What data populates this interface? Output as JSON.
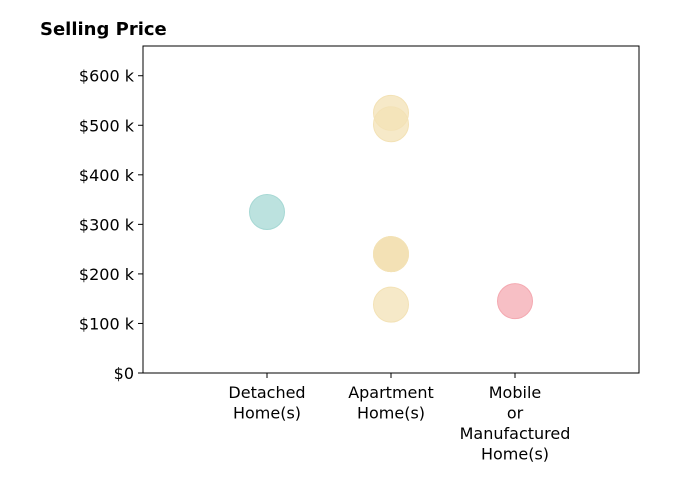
{
  "chart_data": {
    "type": "scatter",
    "title": "Selling Price",
    "xlabel": "",
    "ylabel": "",
    "categories": [
      [
        "Detached",
        "Home(s)"
      ],
      [
        "Apartment",
        "Home(s)"
      ],
      [
        "Mobile",
        "or",
        "Manufactured",
        "Home(s)"
      ]
    ],
    "xlim": [
      0,
      4
    ],
    "ylim": [
      0,
      660000
    ],
    "y_ticks": [
      {
        "value": 0,
        "label": "$0"
      },
      {
        "value": 100000,
        "label": "$100 k"
      },
      {
        "value": 200000,
        "label": "$200 k"
      },
      {
        "value": 300000,
        "label": "$300 k"
      },
      {
        "value": 400000,
        "label": "$400 k"
      },
      {
        "value": 500000,
        "label": "$500 k"
      },
      {
        "value": 600000,
        "label": "$600 k"
      }
    ],
    "grid": false,
    "points": [
      {
        "category": 0,
        "value": 325000,
        "color": "#a6d8d4"
      },
      {
        "category": 1,
        "value": 525000,
        "color": "#f3e2b6"
      },
      {
        "category": 1,
        "value": 502000,
        "color": "#f3e2b6"
      },
      {
        "category": 1,
        "value": 240000,
        "color": "#efd69a"
      },
      {
        "category": 1,
        "value": 240000,
        "color": "#f3e2b6"
      },
      {
        "category": 1,
        "value": 138000,
        "color": "#f3e2b6"
      },
      {
        "category": 2,
        "value": 145000,
        "color": "#f4a9b1"
      }
    ]
  }
}
